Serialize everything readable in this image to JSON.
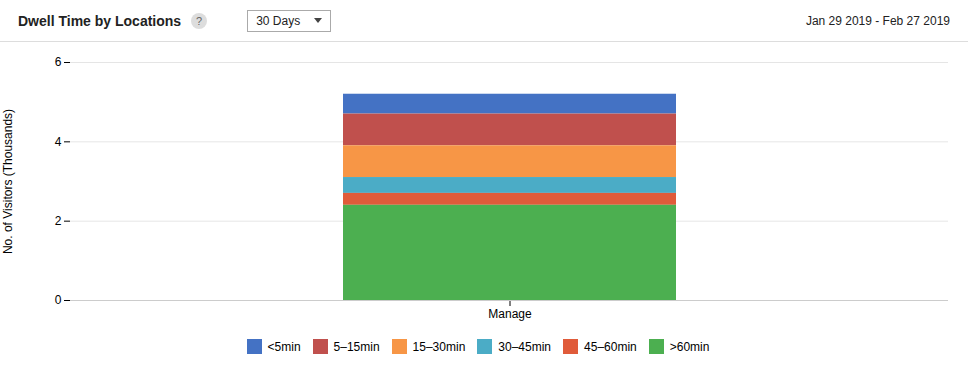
{
  "chart_data": {
    "type": "bar",
    "stacked": true,
    "title": "Dwell Time by Locations",
    "subtitle": "Jan 29 2019 - Feb 27 2019",
    "annotations": [
      "?",
      "30 Days"
    ],
    "ylabel": "No. of Visitors (Thousands)",
    "categories": [
      "Manage"
    ],
    "series": [
      {
        "name": "<5min",
        "color": "#4472c4",
        "values": [
          0.5
        ]
      },
      {
        "name": "5–15min",
        "color": "#c0504d",
        "values": [
          0.8
        ]
      },
      {
        "name": "15–30min",
        "color": "#f79646",
        "values": [
          0.8
        ]
      },
      {
        "name": "30–45min",
        "color": "#4bacc6",
        "values": [
          0.4
        ]
      },
      {
        "name": "45–60min",
        "color": "#e05b3a",
        "values": [
          0.3
        ]
      },
      {
        "name": ">60min",
        "color": "#4caf50",
        "values": [
          2.4
        ]
      }
    ],
    "ylim": [
      0,
      6
    ],
    "yticks": [
      0,
      2,
      4,
      6
    ],
    "grid": true,
    "legend": "bottom"
  }
}
